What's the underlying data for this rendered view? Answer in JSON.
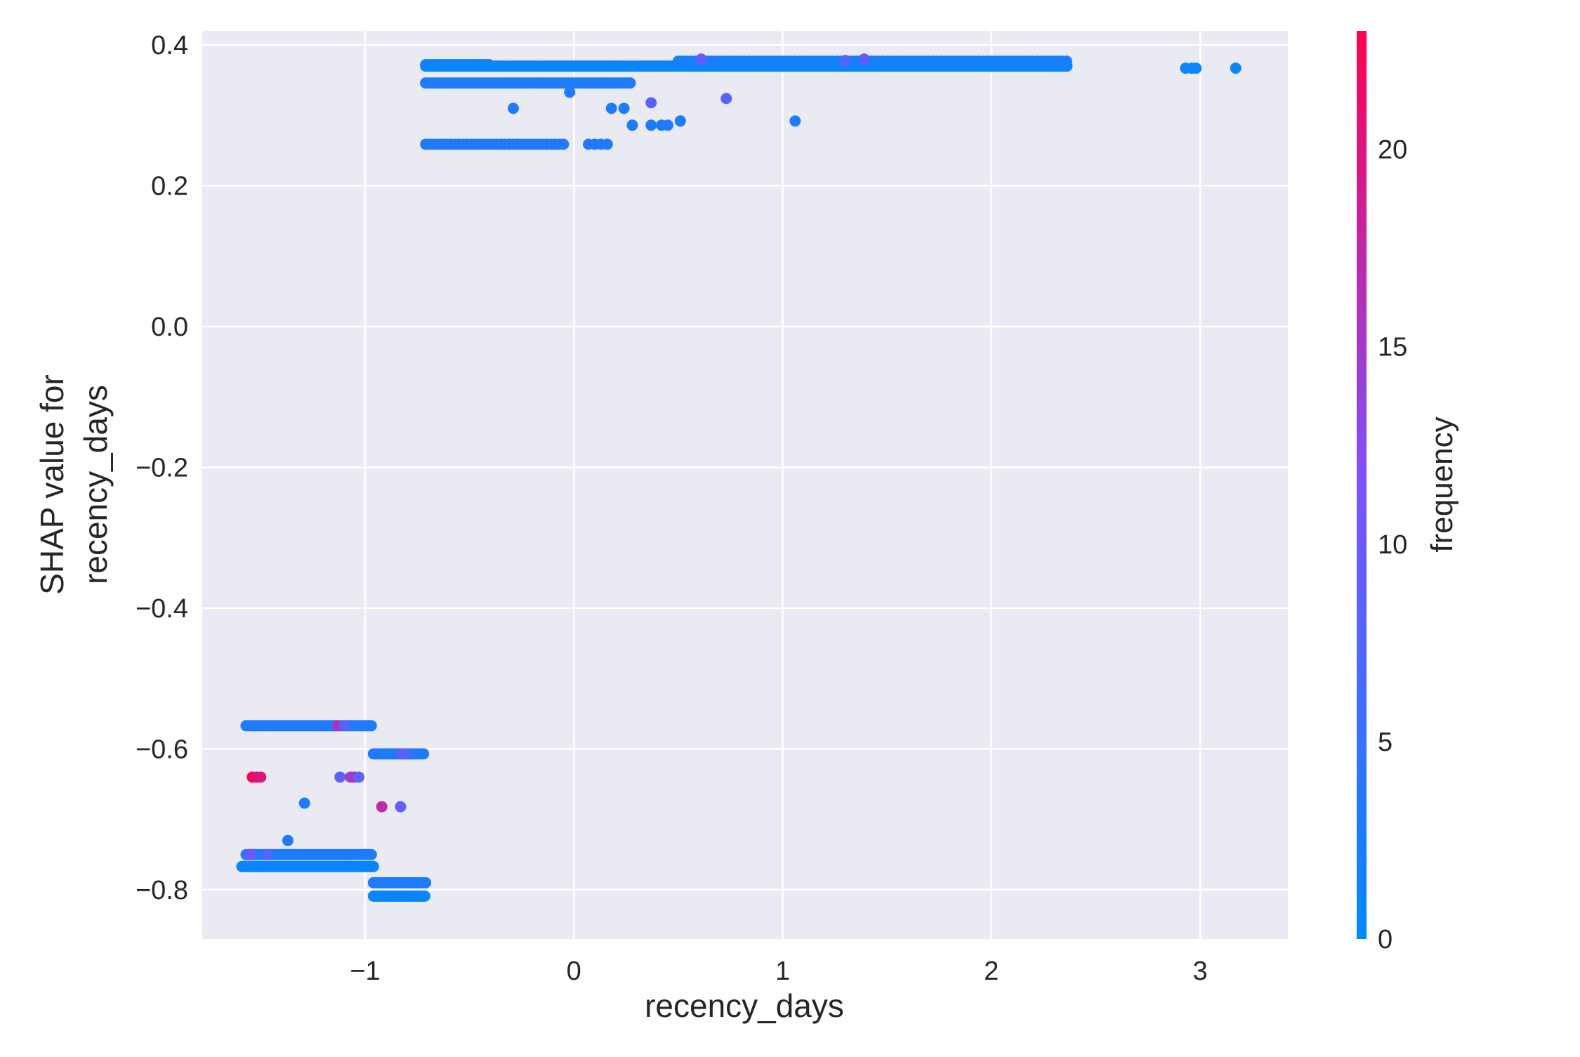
{
  "chart_data": {
    "type": "scatter",
    "title": "",
    "xlabel": "recency_days",
    "ylabel_lines": [
      "SHAP value for",
      "recency_days"
    ],
    "xlim": [
      -1.78,
      3.42
    ],
    "ylim": [
      -0.87,
      0.42
    ],
    "xticks": [
      -1,
      0,
      1,
      2,
      3
    ],
    "xtick_labels": [
      "−1",
      "0",
      "1",
      "2",
      "3"
    ],
    "yticks": [
      -0.8,
      -0.6,
      -0.4,
      -0.2,
      0.0,
      0.2,
      0.4
    ],
    "ytick_labels": [
      "−0.8",
      "−0.6",
      "−0.4",
      "−0.2",
      "0.0",
      "0.2",
      "0.4"
    ],
    "grid": true,
    "background_color": "#eaeaf2",
    "colorbar": {
      "label": "frequency",
      "range": [
        0,
        23
      ],
      "ticks": [
        0,
        5,
        10,
        15,
        20
      ],
      "tick_labels": [
        "0",
        "5",
        "10",
        "15",
        "20"
      ],
      "color_low": "#008afb",
      "color_mid": "#7c52ff",
      "color_high": "#ff0052"
    },
    "segments": [
      {
        "x0": -0.71,
        "x1": 2.37,
        "y": 0.37,
        "step": 0.012,
        "c": 1
      },
      {
        "x0": 0.5,
        "x1": 2.37,
        "y": 0.377,
        "step": 0.02,
        "c": 2
      },
      {
        "x0": -0.71,
        "x1": -0.4,
        "y": 0.372,
        "step": 0.008,
        "c": 1
      },
      {
        "x0": -0.71,
        "x1": 0.28,
        "y": 0.346,
        "step": 0.014,
        "c": 3
      },
      {
        "x0": -0.71,
        "x1": -0.05,
        "y": 0.259,
        "step": 0.02,
        "c": 3
      },
      {
        "x0": -1.57,
        "x1": -0.96,
        "y": -0.567,
        "step": 0.012,
        "c": 3
      },
      {
        "x0": -0.96,
        "x1": -0.71,
        "y": -0.607,
        "step": 0.012,
        "c": 3
      },
      {
        "x0": -1.57,
        "x1": -0.96,
        "y": -0.75,
        "step": 0.012,
        "c": 3
      },
      {
        "x0": -1.59,
        "x1": -0.96,
        "y": -0.767,
        "step": 0.006,
        "c": 1
      },
      {
        "x0": -0.96,
        "x1": -0.71,
        "y": -0.79,
        "step": 0.01,
        "c": 3
      },
      {
        "x0": -0.96,
        "x1": -0.71,
        "y": -0.809,
        "step": 0.006,
        "c": 1
      }
    ],
    "points": [
      {
        "x": 2.93,
        "y": 0.367,
        "c": 1
      },
      {
        "x": 2.96,
        "y": 0.367,
        "c": 1
      },
      {
        "x": 2.98,
        "y": 0.367,
        "c": 1
      },
      {
        "x": 3.17,
        "y": 0.367,
        "c": 1
      },
      {
        "x": -0.29,
        "y": 0.31,
        "c": 3
      },
      {
        "x": 0.18,
        "y": 0.31,
        "c": 3
      },
      {
        "x": 0.24,
        "y": 0.31,
        "c": 3
      },
      {
        "x": 0.37,
        "y": 0.318,
        "c": 8
      },
      {
        "x": 0.73,
        "y": 0.324,
        "c": 8
      },
      {
        "x": 1.06,
        "y": 0.292,
        "c": 3
      },
      {
        "x": 0.51,
        "y": 0.292,
        "c": 3
      },
      {
        "x": 0.28,
        "y": 0.286,
        "c": 3
      },
      {
        "x": 0.37,
        "y": 0.286,
        "c": 3
      },
      {
        "x": 0.42,
        "y": 0.286,
        "c": 3
      },
      {
        "x": 0.45,
        "y": 0.286,
        "c": 3
      },
      {
        "x": 0.07,
        "y": 0.259,
        "c": 3
      },
      {
        "x": 0.1,
        "y": 0.259,
        "c": 3
      },
      {
        "x": 0.13,
        "y": 0.259,
        "c": 3
      },
      {
        "x": 0.16,
        "y": 0.259,
        "c": 3
      },
      {
        "x": -0.02,
        "y": 0.333,
        "c": 3
      },
      {
        "x": 0.61,
        "y": 0.38,
        "c": 9
      },
      {
        "x": 1.3,
        "y": 0.378,
        "c": 8
      },
      {
        "x": 1.39,
        "y": 0.38,
        "c": 9
      },
      {
        "x": -1.13,
        "y": -0.567,
        "c": 16
      },
      {
        "x": -1.1,
        "y": -0.567,
        "c": 8
      },
      {
        "x": -1.54,
        "y": -0.64,
        "c": 23
      },
      {
        "x": -1.52,
        "y": -0.64,
        "c": 21
      },
      {
        "x": -1.5,
        "y": -0.64,
        "c": 20
      },
      {
        "x": -1.12,
        "y": -0.64,
        "c": 9
      },
      {
        "x": -1.07,
        "y": -0.64,
        "c": 14
      },
      {
        "x": -1.05,
        "y": -0.64,
        "c": 16
      },
      {
        "x": -1.03,
        "y": -0.64,
        "c": 9
      },
      {
        "x": -1.29,
        "y": -0.677,
        "c": 3
      },
      {
        "x": -0.92,
        "y": -0.682,
        "c": 17
      },
      {
        "x": -0.83,
        "y": -0.682,
        "c": 9
      },
      {
        "x": -1.37,
        "y": -0.73,
        "c": 3
      },
      {
        "x": -1.55,
        "y": -0.75,
        "c": 10
      },
      {
        "x": -1.47,
        "y": -0.75,
        "c": 8
      },
      {
        "x": -0.82,
        "y": -0.607,
        "c": 10
      },
      {
        "x": -0.79,
        "y": -0.607,
        "c": 6
      }
    ]
  }
}
